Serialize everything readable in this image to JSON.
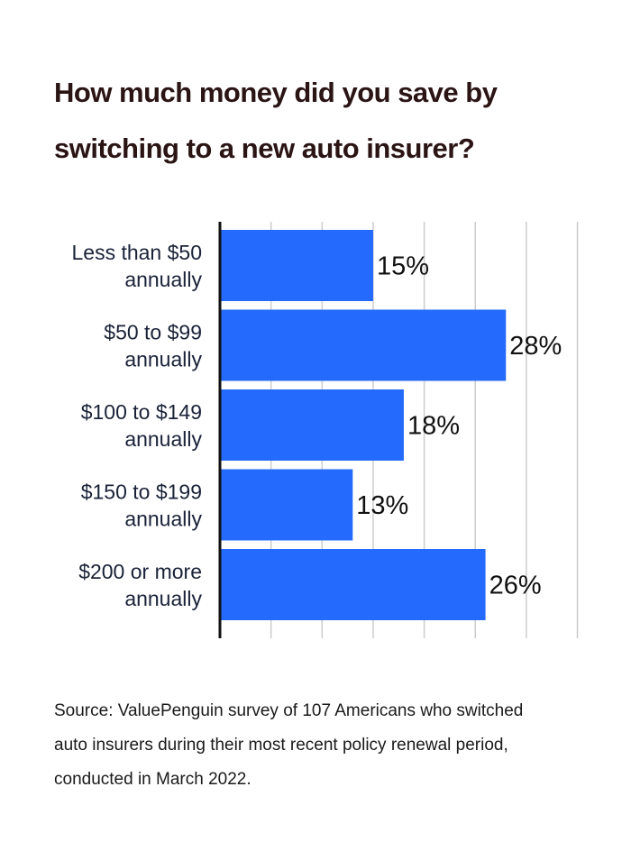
{
  "title_lines": [
    "How much money did you save by",
    "switching to a new auto insurer?"
  ],
  "source_lines": [
    "Source: ValuePenguin survey of 107 Americans who switched",
    "auto insurers during their most recent policy renewal period,",
    "conducted in March 2022."
  ],
  "colors": {
    "bar": "#246bfd",
    "axis": "#111111",
    "grid": "#cccccc",
    "category_text": "#1a2238",
    "value_text": "#111111"
  },
  "chart_data": {
    "type": "bar",
    "orientation": "horizontal",
    "categories": [
      [
        "Less than $50",
        "annually"
      ],
      [
        "$50 to $99",
        "annually"
      ],
      [
        "$100 to $149",
        "annually"
      ],
      [
        "$150 to $199",
        "annually"
      ],
      [
        "$200 or more",
        "annually"
      ]
    ],
    "values": [
      15,
      28,
      18,
      13,
      26
    ],
    "value_labels": [
      "15%",
      "28%",
      "18%",
      "13%",
      "26%"
    ],
    "xlim": [
      0,
      35
    ],
    "grid_step": 5,
    "grid": true,
    "xlabel": "",
    "ylabel": ""
  }
}
